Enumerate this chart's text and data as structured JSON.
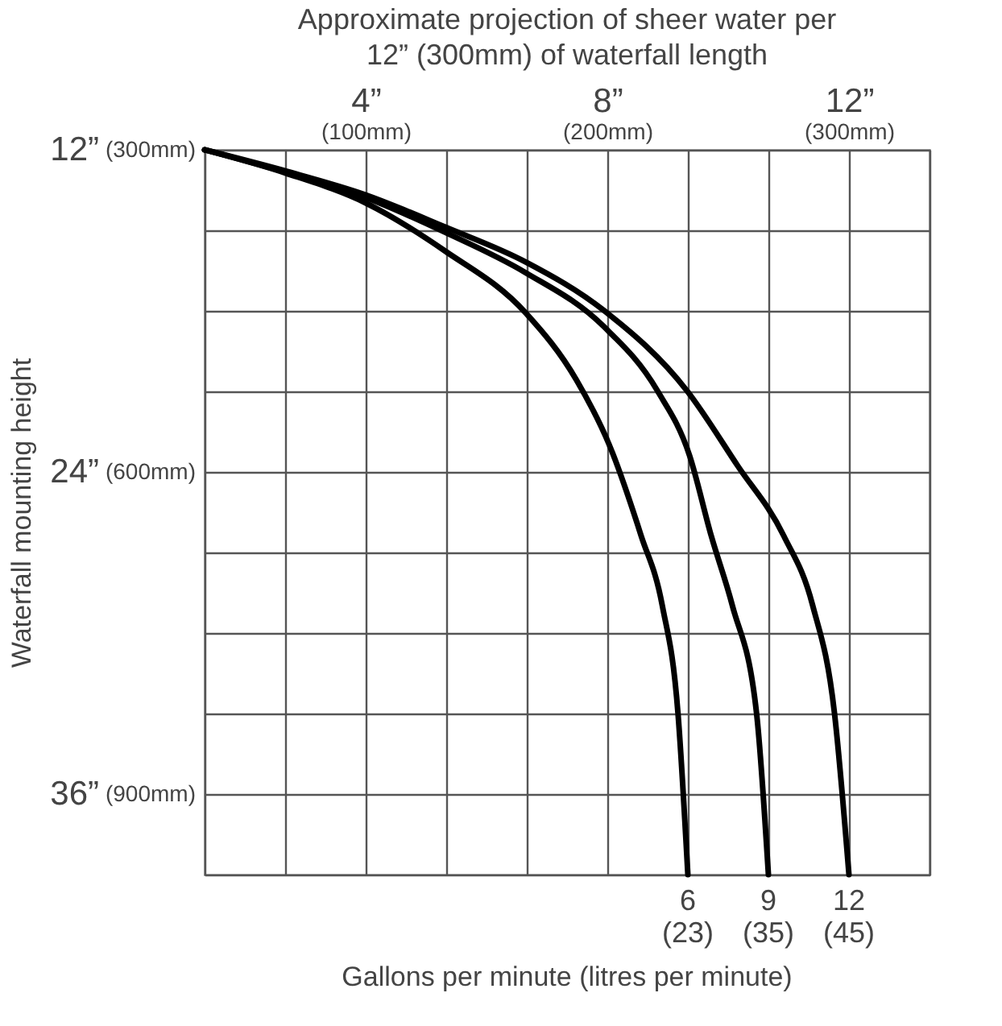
{
  "chart_data": {
    "type": "line",
    "subtitle": "Approximate projection of sheer water per 12” (300mm) of waterfall length",
    "ylabel": "Waterfall mounting height",
    "legend_title": "Gallons per minute (litres per minute)",
    "xlim": [
      1.3333,
      13.3333
    ],
    "xticks": [
      {
        "value": 1.3333,
        "label": null
      },
      {
        "value": 2.6667,
        "label": null
      },
      {
        "value": 4,
        "label": "4”"
      },
      {
        "value": 5.3333,
        "label": null
      },
      {
        "value": 6.6667,
        "label": null
      },
      {
        "value": 8,
        "label": "8”"
      },
      {
        "value": 9.3333,
        "label": null
      },
      {
        "value": 10.6667,
        "label": null
      },
      {
        "value": 12,
        "label": "12”"
      },
      {
        "value": 13.3333,
        "label": null
      }
    ],
    "x2lim": [
      33.333,
      333.333
    ],
    "x2ticks": [
      {
        "value": 100,
        "label": "(100mm)"
      },
      {
        "value": 200,
        "label": "(200mm)"
      },
      {
        "value": 300,
        "label": "(300mm)"
      }
    ],
    "y2lim": [
      975,
      300
    ],
    "y2ticks": [
      {
        "value": 300,
        "label": "(300mm)"
      },
      {
        "value": 600,
        "label": "(600mm)"
      },
      {
        "value": 900,
        "label": "(900mm)"
      }
    ],
    "ylim": [
      39,
      12
    ],
    "yticks": [
      {
        "value": 12,
        "label": "12”"
      },
      {
        "value": 15,
        "label": null
      },
      {
        "value": 18,
        "label": null
      },
      {
        "value": 21,
        "label": null
      },
      {
        "value": 24,
        "label": "24”"
      },
      {
        "value": 27,
        "label": null
      },
      {
        "value": 30,
        "label": null
      },
      {
        "value": 33,
        "label": null
      },
      {
        "value": 36,
        "label": "36”"
      },
      {
        "value": 39,
        "label": null
      }
    ],
    "grid": true,
    "series": [
      {
        "name": "6 (23)",
        "color": "#000000",
        "x": [
          1.3333,
          2.69,
          4.0,
          5.32,
          6.65,
          7.49,
          8.03,
          8.56,
          8.91,
          9.17,
          9.3333
        ],
        "values": [
          12,
          12.88,
          13.98,
          15.78,
          18.08,
          20.58,
          22.98,
          26.38,
          28.98,
          33.0,
          39
        ]
      },
      {
        "name": "9 (35)",
        "color": "#000000",
        "x": [
          1.3333,
          2.69,
          4.0,
          5.32,
          6.65,
          7.94,
          8.83,
          9.36,
          9.72,
          10.07,
          10.47,
          10.6667
        ],
        "values": [
          12,
          12.85,
          13.78,
          15.08,
          16.58,
          18.58,
          20.98,
          23.38,
          26.38,
          28.98,
          32.98,
          39
        ]
      },
      {
        "name": "12 (45)",
        "color": "#000000",
        "x": [
          1.3333,
          2.69,
          4.0,
          5.32,
          6.65,
          7.94,
          9.32,
          10.16,
          10.92,
          11.4,
          11.76,
          12
        ],
        "values": [
          12,
          12.8,
          13.68,
          14.88,
          16.18,
          17.98,
          20.98,
          23.78,
          26.38,
          28.98,
          32.98,
          39
        ]
      }
    ]
  }
}
